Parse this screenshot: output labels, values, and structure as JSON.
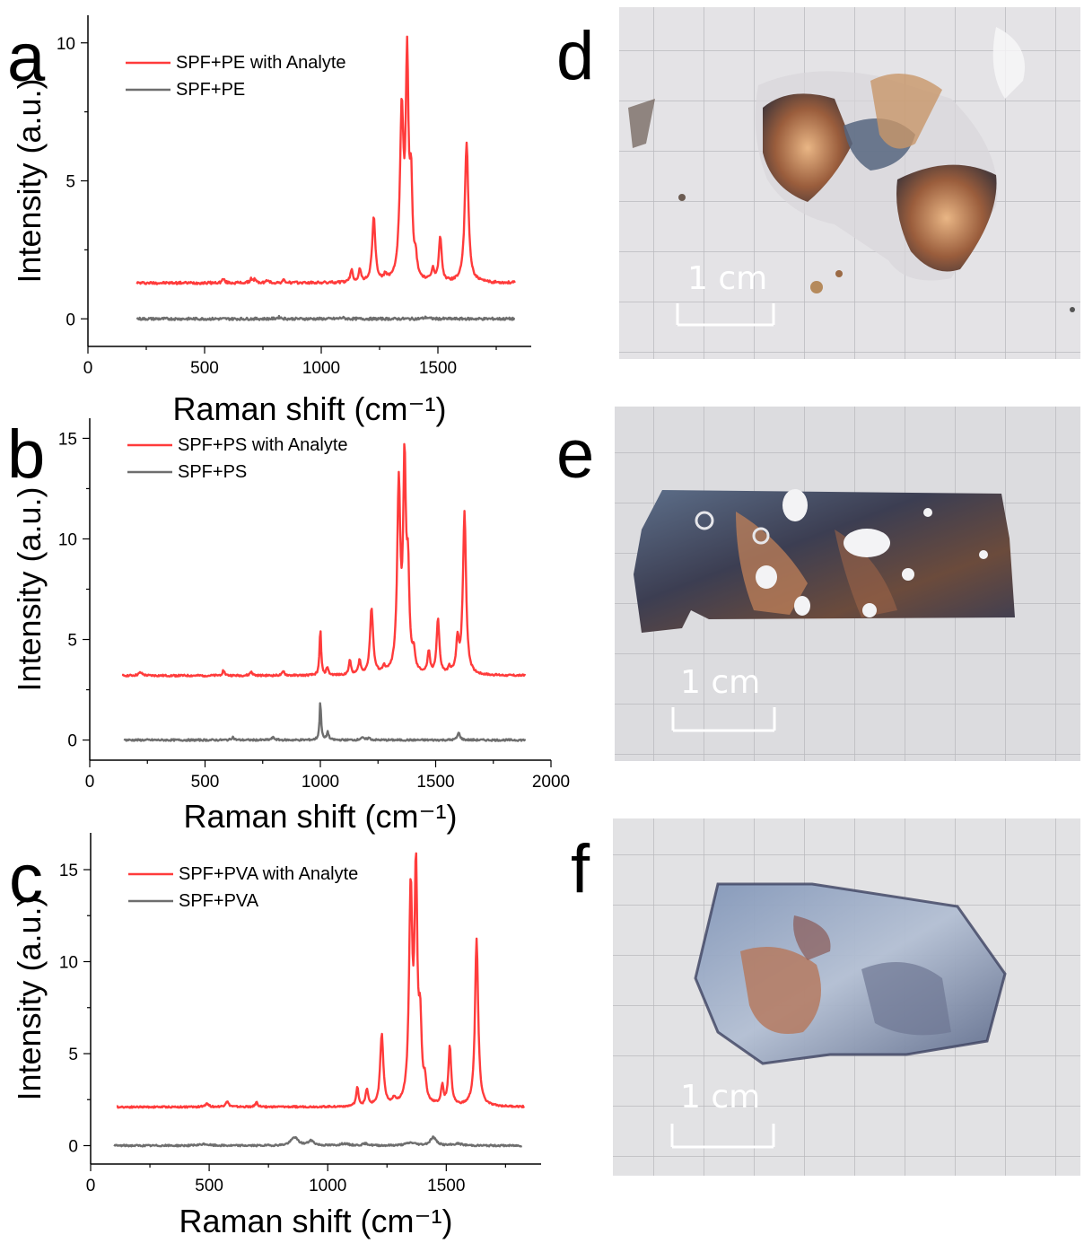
{
  "colors": {
    "analyte": "#ff3b3b",
    "blank": "#6e6e6e"
  },
  "chart_data": [
    {
      "panel": "a",
      "type": "line",
      "xlabel": "Raman shift (cm⁻¹)",
      "ylabel": "Intensity (a.u.)",
      "xlim": [
        0,
        1900
      ],
      "ylim": [
        -1,
        11
      ],
      "xticks": [
        0,
        500,
        1000,
        1500
      ],
      "yticks": [
        0,
        5,
        10
      ],
      "legend": "top-left",
      "series": [
        {
          "name": "SPF+PE with Analyte",
          "color": "#ff3b3b",
          "baseline": 1.3,
          "x_start": 210,
          "x_end": 1830,
          "peaks": [
            [
              580,
              0.15,
              6
            ],
            [
              700,
              0.15,
              6
            ],
            [
              715,
              0.12,
              5
            ],
            [
              770,
              0.1,
              6
            ],
            [
              840,
              0.1,
              6
            ],
            [
              1130,
              0.45,
              6
            ],
            [
              1165,
              0.45,
              6
            ],
            [
              1225,
              2.35,
              8
            ],
            [
              1275,
              0.2,
              6
            ],
            [
              1345,
              6.0,
              9
            ],
            [
              1368,
              7.6,
              7
            ],
            [
              1385,
              3.2,
              7
            ],
            [
              1405,
              0.6,
              6
            ],
            [
              1478,
              0.45,
              6
            ],
            [
              1510,
              1.65,
              7
            ],
            [
              1623,
              5.05,
              9
            ]
          ]
        },
        {
          "name": "SPF+PE",
          "color": "#6e6e6e",
          "baseline": 0.0,
          "x_start": 210,
          "x_end": 1830,
          "peaks": [
            [
              820,
              0.06,
              10
            ],
            [
              1090,
              0.04,
              10
            ],
            [
              1450,
              0.05,
              12
            ]
          ]
        }
      ]
    },
    {
      "panel": "b",
      "type": "line",
      "xlabel": "Raman shift (cm⁻¹)",
      "ylabel": "Intensity (a.u.)",
      "xlim": [
        0,
        2000
      ],
      "ylim": [
        -1,
        16
      ],
      "xticks": [
        0,
        500,
        1000,
        1500,
        2000
      ],
      "yticks": [
        0,
        5,
        10,
        15
      ],
      "legend": "top-left",
      "series": [
        {
          "name": "SPF+PS with Analyte",
          "color": "#ff3b3b",
          "baseline": 3.2,
          "x_start": 140,
          "x_end": 1890,
          "peaks": [
            [
              220,
              0.15,
              10
            ],
            [
              580,
              0.25,
              6
            ],
            [
              700,
              0.2,
              6
            ],
            [
              840,
              0.2,
              6
            ],
            [
              1000,
              2.35,
              4
            ],
            [
              1030,
              0.4,
              5
            ],
            [
              1128,
              0.7,
              6
            ],
            [
              1170,
              0.7,
              6
            ],
            [
              1222,
              3.3,
              8
            ],
            [
              1275,
              0.3,
              6
            ],
            [
              1340,
              9.2,
              8
            ],
            [
              1365,
              10.0,
              7
            ],
            [
              1380,
              4.5,
              7
            ],
            [
              1405,
              0.9,
              6
            ],
            [
              1470,
              1.1,
              6
            ],
            [
              1510,
              2.75,
              7
            ],
            [
              1560,
              0.3,
              6
            ],
            [
              1595,
              1.6,
              7
            ],
            [
              1625,
              8.1,
              8
            ]
          ]
        },
        {
          "name": "SPF+PS",
          "color": "#6e6e6e",
          "baseline": 0.0,
          "x_start": 150,
          "x_end": 1890,
          "peaks": [
            [
              620,
              0.15,
              6
            ],
            [
              795,
              0.12,
              8
            ],
            [
              1000,
              1.9,
              4
            ],
            [
              1032,
              0.4,
              5
            ],
            [
              1180,
              0.12,
              8
            ],
            [
              1210,
              0.1,
              8
            ],
            [
              1600,
              0.35,
              7
            ]
          ]
        }
      ]
    },
    {
      "panel": "c",
      "type": "line",
      "xlabel": "Raman shift (cm⁻¹)",
      "ylabel": "Intensity (a.u.)",
      "xlim": [
        0,
        1900
      ],
      "ylim": [
        -1,
        17
      ],
      "xticks": [
        0,
        500,
        1000,
        1500
      ],
      "yticks": [
        0,
        5,
        10,
        15
      ],
      "legend": "top-left",
      "series": [
        {
          "name": "SPF+PVA with Analyte",
          "color": "#ff3b3b",
          "baseline": 2.1,
          "x_start": 110,
          "x_end": 1830,
          "peaks": [
            [
              490,
              0.2,
              8
            ],
            [
              575,
              0.3,
              8
            ],
            [
              700,
              0.25,
              6
            ],
            [
              1125,
              1.0,
              6
            ],
            [
              1165,
              0.9,
              6
            ],
            [
              1228,
              3.9,
              8
            ],
            [
              1280,
              0.3,
              6
            ],
            [
              1350,
              11.4,
              8
            ],
            [
              1372,
              12.2,
              7
            ],
            [
              1390,
              4.0,
              7
            ],
            [
              1410,
              1.0,
              6
            ],
            [
              1483,
              1.0,
              6
            ],
            [
              1515,
              3.2,
              7
            ],
            [
              1628,
              9.1,
              8
            ]
          ]
        },
        {
          "name": "SPF+PVA",
          "color": "#6e6e6e",
          "baseline": 0.0,
          "x_start": 100,
          "x_end": 1820,
          "peaks": [
            [
              480,
              0.08,
              20
            ],
            [
              860,
              0.45,
              18
            ],
            [
              930,
              0.25,
              15
            ],
            [
              1070,
              0.1,
              20
            ],
            [
              1160,
              0.1,
              15
            ],
            [
              1350,
              0.15,
              25
            ],
            [
              1445,
              0.45,
              15
            ],
            [
              1550,
              0.1,
              20
            ]
          ]
        }
      ]
    }
  ],
  "photos": [
    {
      "panel": "d",
      "scale_text": "1 cm"
    },
    {
      "panel": "e",
      "scale_text": "1 cm"
    },
    {
      "panel": "f",
      "scale_text": "1 cm"
    }
  ]
}
